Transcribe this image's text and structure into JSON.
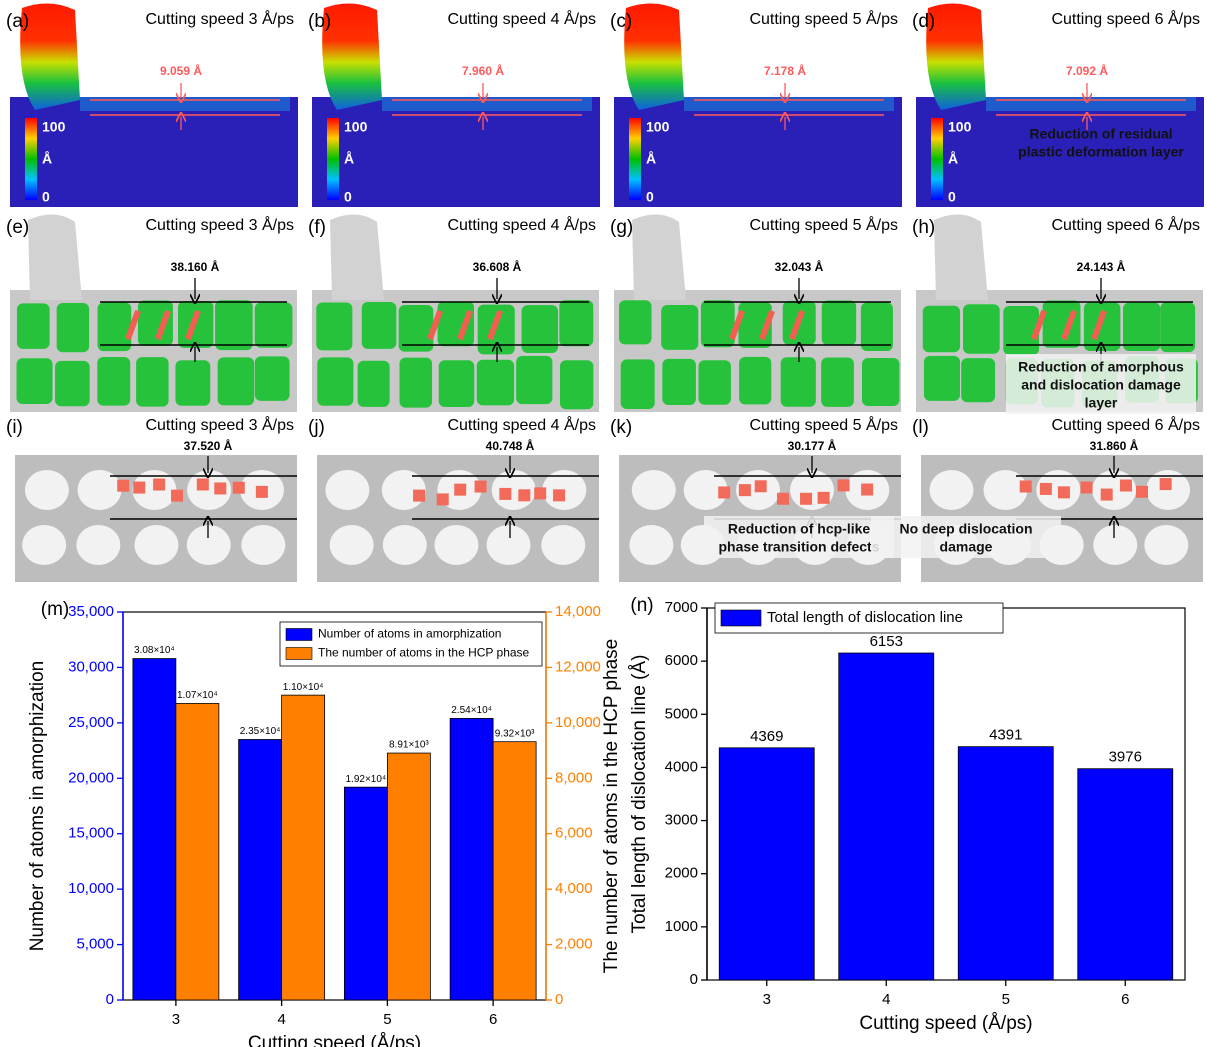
{
  "panels": [
    {
      "label": "(a)",
      "title": "Cutting speed  3 Å/ps",
      "measure": "9.059 Å",
      "colorbar": [
        "100",
        "Å",
        "0"
      ]
    },
    {
      "label": "(b)",
      "title": "Cutting speed  4 Å/ps",
      "measure": "7.960 Å",
      "colorbar": [
        "100",
        "Å",
        "0"
      ]
    },
    {
      "label": "(c)",
      "title": "Cutting speed  5 Å/ps",
      "measure": "7.178 Å",
      "colorbar": [
        "100",
        "Å",
        "0"
      ]
    },
    {
      "label": "(d)",
      "title": "Cutting speed  6 Å/ps",
      "measure": "7.092 Å",
      "colorbar": [
        "100",
        "Å",
        "0"
      ],
      "note": [
        "Reduction of residual",
        "plastic deformation layer"
      ]
    },
    {
      "label": "(e)",
      "title": "Cutting speed  3 Å/ps",
      "measure": "38.160 Å"
    },
    {
      "label": "(f)",
      "title": "Cutting speed  4 Å/ps",
      "measure": "36.608 Å"
    },
    {
      "label": "(g)",
      "title": "Cutting speed  5 Å/ps",
      "measure": "32.043 Å"
    },
    {
      "label": "(h)",
      "title": "Cutting speed  6 Å/ps",
      "measure": "24.143 Å",
      "note": [
        "Reduction of amorphous",
        "and dislocation damage",
        "layer"
      ]
    },
    {
      "label": "(i)",
      "title": "Cutting speed  3 Å/ps",
      "measure": "37.520 Å"
    },
    {
      "label": "(j)",
      "title": "Cutting speed  4 Å/ps",
      "measure": "40.748 Å"
    },
    {
      "label": "(k)",
      "title": "Cutting speed  5 Å/ps",
      "measure": "30.177 Å",
      "note": [
        "Reduction of hcp-like",
        "phase transition defects"
      ]
    },
    {
      "label": "(l)",
      "title": "Cutting speed  6 Å/ps",
      "measure": "31.860 Å",
      "note": [
        "No deep dislocation",
        "damage"
      ]
    }
  ],
  "chart_data": [
    {
      "type": "bar",
      "panel_label": "(m)",
      "x_label": "Cutting speed (Å/ps)",
      "y_label": "Number of atoms in amorphization",
      "y2_label": "The number of atoms in the HCP phase",
      "categories": [
        "3",
        "4",
        "5",
        "6"
      ],
      "series": [
        {
          "name": "Number of atoms in amorphization",
          "color": "#0000ff",
          "values": [
            30800,
            23500,
            19200,
            25400
          ],
          "value_labels": [
            "3.08×10⁴",
            "2.35×10⁴",
            "1.92×10⁴",
            "2.54×10⁴"
          ]
        },
        {
          "name": "The number of atoms in the HCP phase",
          "color": "#ff8000",
          "axis": "y2",
          "values": [
            10700,
            11000,
            8910,
            9320
          ],
          "value_labels": [
            "1.07×10⁴",
            "1.10×10⁴",
            "8.91×10³",
            "9.32×10³"
          ]
        }
      ],
      "ylim": [
        0,
        35000
      ],
      "yticks": [
        0,
        {
          "value": 5000,
          "label": "5,000"
        },
        {
          "value": 10000,
          "label": "10,000"
        },
        {
          "value": 15000,
          "label": "15,000"
        },
        {
          "value": 20000,
          "label": "20,000"
        },
        {
          "value": 25000,
          "label": "25,000"
        },
        {
          "value": 30000,
          "label": "30,000"
        },
        {
          "value": 35000,
          "label": "35,000"
        }
      ],
      "y2lim": [
        0,
        14000
      ],
      "y2ticks": [
        0,
        {
          "value": 2000,
          "label": "2,000"
        },
        {
          "value": 4000,
          "label": "4,000"
        },
        {
          "value": 6000,
          "label": "6,000"
        },
        {
          "value": 8000,
          "label": "8,000"
        },
        {
          "value": 10000,
          "label": "10,000"
        },
        {
          "value": 12000,
          "label": "12,000"
        },
        {
          "value": 14000,
          "label": "14,000"
        }
      ],
      "legend": "top-right"
    },
    {
      "type": "bar",
      "panel_label": "(n)",
      "x_label": "Cutting speed (Å/ps)",
      "y_label": "Total length of dislocation line (Å)",
      "categories": [
        "3",
        "4",
        "5",
        "6"
      ],
      "series": [
        {
          "name": "Total length of dislocation line",
          "color": "#0000ff",
          "values": [
            4369,
            6153,
            4391,
            3976
          ]
        }
      ],
      "ylim": [
        0,
        7000
      ],
      "yticks": [
        0,
        1000,
        2000,
        3000,
        4000,
        5000,
        6000,
        7000
      ],
      "legend": "top-left"
    }
  ]
}
